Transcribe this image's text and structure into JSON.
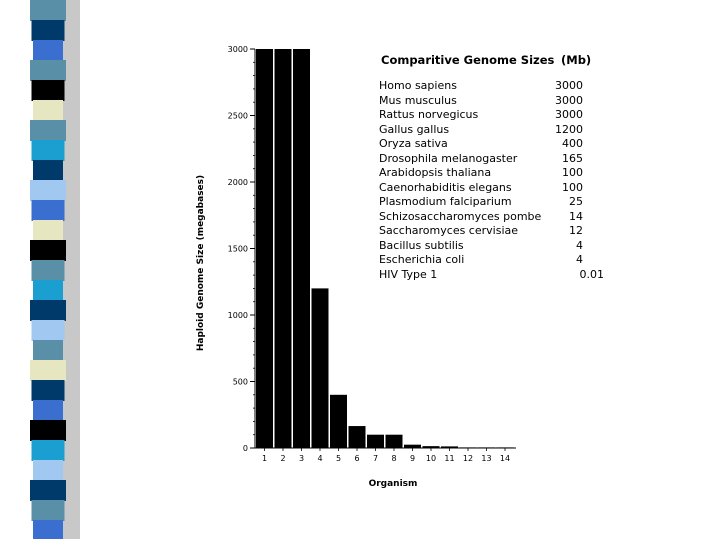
{
  "chart_data": {
    "type": "bar",
    "categories": [
      "1",
      "2",
      "3",
      "4",
      "5",
      "6",
      "7",
      "8",
      "9",
      "10",
      "11",
      "12",
      "13",
      "14"
    ],
    "values": [
      3000,
      3000,
      3000,
      1200,
      400,
      165,
      100,
      100,
      25,
      14,
      12,
      4,
      4,
      0.01
    ],
    "xlabel": "Organism",
    "ylabel": "Haploid Genome Size (megabases)",
    "ylim": [
      0,
      3000
    ],
    "yticks": [
      0,
      500,
      1000,
      1500,
      2000,
      2500,
      3000
    ],
    "grid": false,
    "legend": "none"
  },
  "table": {
    "title": "Comparitive Genome Sizes",
    "unit": "(Mb)",
    "rows": [
      {
        "organism": "Homo sapiens",
        "size": "3000"
      },
      {
        "organism": "Mus musculus",
        "size": "3000"
      },
      {
        "organism": "Rattus norvegicus",
        "size": "3000"
      },
      {
        "organism": "Gallus gallus",
        "size": "1200"
      },
      {
        "organism": "Oryza sativa",
        "size": "400"
      },
      {
        "organism": "Drosophila melanogaster",
        "size": "165"
      },
      {
        "organism": "Arabidopsis thaliana",
        "size": "100"
      },
      {
        "organism": "Caenorhabiditis elegans",
        "size": "100"
      },
      {
        "organism": "Plasmodium falciparium",
        "size": "25"
      },
      {
        "organism": "Schizosaccharomyces pombe",
        "size": "14"
      },
      {
        "organism": "Saccharomyces cervisiae",
        "size": "12"
      },
      {
        "organism": "Bacillus subtilis",
        "size": "4"
      },
      {
        "organism": "Escherichia coli",
        "size": "4"
      },
      {
        "organism": "HIV Type 1",
        "size": "0.01"
      }
    ]
  },
  "colors": {
    "bar": "#000000",
    "stripe": [
      "#5a8fa8",
      "#003a6b",
      "#3a6fd0",
      "#000000",
      "#e6e6c0",
      "#1a9fd0",
      "#a0c8f0",
      "#3a70d8"
    ]
  }
}
